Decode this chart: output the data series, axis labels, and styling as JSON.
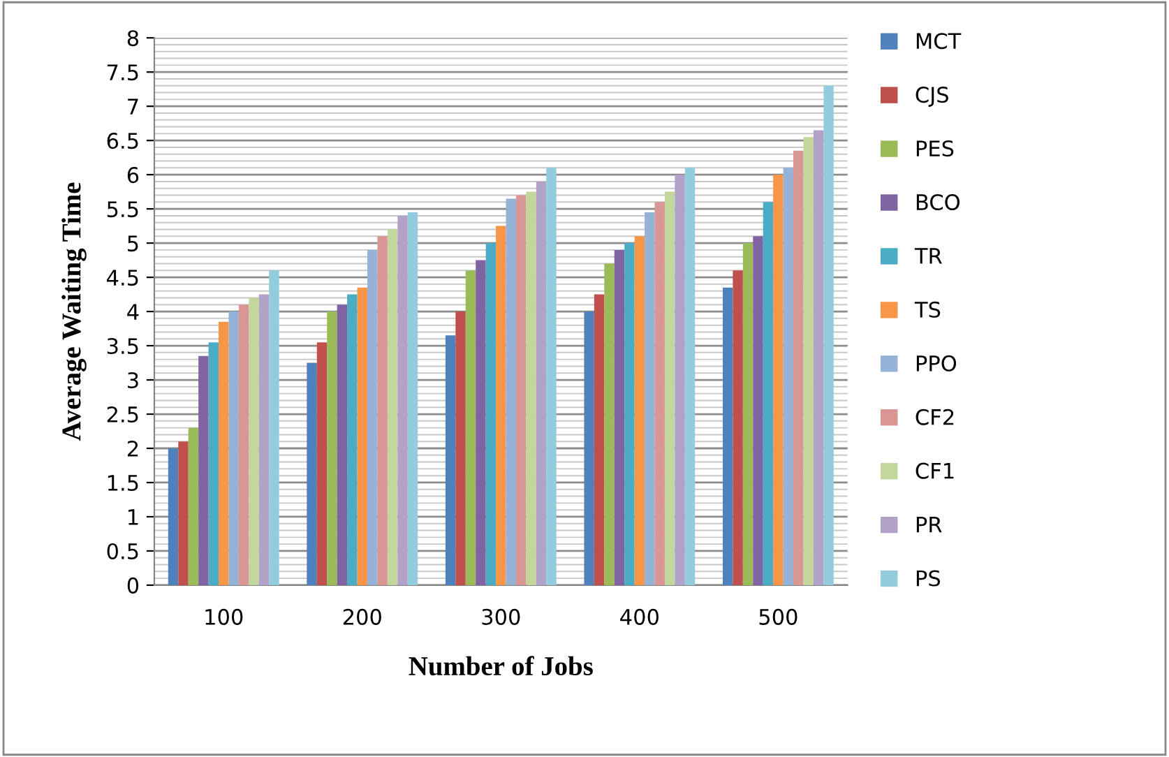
{
  "chart_data": {
    "type": "bar",
    "xlabel": "Number of Jobs",
    "ylabel": "Average Waiting Time",
    "categories": [
      "100",
      "200",
      "300",
      "400",
      "500"
    ],
    "series": [
      {
        "name": "MCT",
        "color": "#4f81bd",
        "values": [
          2.0,
          3.25,
          3.65,
          4.0,
          4.35
        ]
      },
      {
        "name": "CJS",
        "color": "#c0504d",
        "values": [
          2.1,
          3.55,
          4.0,
          4.25,
          4.6
        ]
      },
      {
        "name": "PES",
        "color": "#9bbb59",
        "values": [
          2.3,
          4.0,
          4.6,
          4.7,
          5.0
        ]
      },
      {
        "name": "BCO",
        "color": "#8064a2",
        "values": [
          3.35,
          4.1,
          4.75,
          4.9,
          5.1
        ]
      },
      {
        "name": "TR",
        "color": "#4bacc6",
        "values": [
          3.55,
          4.25,
          5.0,
          5.0,
          5.6
        ]
      },
      {
        "name": "TS",
        "color": "#f79646",
        "values": [
          3.85,
          4.35,
          5.25,
          5.1,
          6.0
        ]
      },
      {
        "name": "PPO",
        "color": "#95b3d7",
        "values": [
          4.0,
          4.9,
          5.65,
          5.45,
          6.1
        ]
      },
      {
        "name": "CF2",
        "color": "#d99694",
        "values": [
          4.1,
          5.1,
          5.7,
          5.6,
          6.35
        ]
      },
      {
        "name": "CF1",
        "color": "#c3d69b",
        "values": [
          4.2,
          5.2,
          5.75,
          5.75,
          6.55
        ]
      },
      {
        "name": "PR",
        "color": "#b3a2c7",
        "values": [
          4.25,
          5.4,
          5.9,
          6.0,
          6.65
        ]
      },
      {
        "name": "PS",
        "color": "#93cddd",
        "values": [
          4.6,
          5.45,
          6.1,
          6.1,
          7.3
        ]
      }
    ],
    "ylim": [
      0,
      8
    ],
    "yticks": [
      0,
      0.5,
      1,
      1.5,
      2,
      2.5,
      3,
      3.5,
      4,
      4.5,
      5,
      5.5,
      6,
      6.5,
      7,
      7.5,
      8
    ],
    "grid": "y",
    "legend": "right"
  }
}
